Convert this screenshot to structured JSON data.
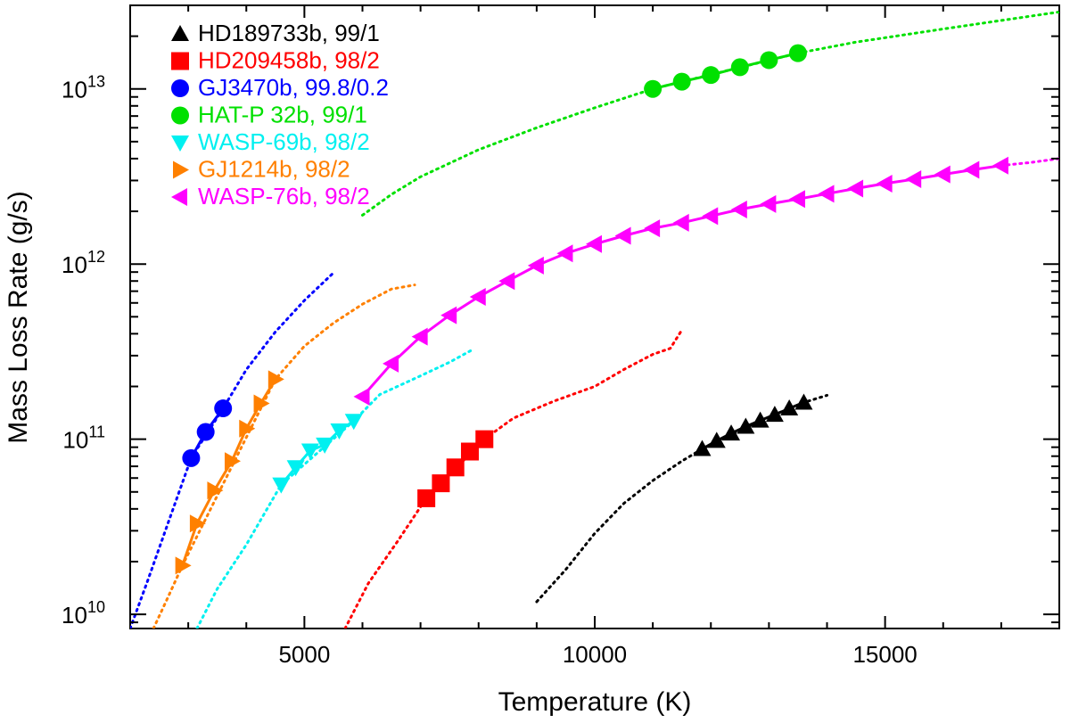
{
  "chart_data": {
    "type": "scatter",
    "title": "",
    "xlabel": "Temperature (K)",
    "ylabel": "Mass Loss Rate (g/s)",
    "x_scale": "linear",
    "y_scale": "log",
    "xlim": [
      2000,
      18000
    ],
    "ylim": [
      8300000000.0,
      30000000000000.0
    ],
    "grid": false,
    "legend_position": "top-left",
    "x_ticks": [
      {
        "value": 5000,
        "label": "5000"
      },
      {
        "value": 10000,
        "label": "10000"
      },
      {
        "value": 15000,
        "label": "15000"
      }
    ],
    "y_ticks": [
      {
        "value": 10000000000.0,
        "base": "10",
        "exp": "10"
      },
      {
        "value": 100000000000.0,
        "base": "10",
        "exp": "11"
      },
      {
        "value": 1000000000000.0,
        "base": "10",
        "exp": "12"
      },
      {
        "value": 10000000000000.0,
        "base": "10",
        "exp": "13"
      }
    ],
    "series": [
      {
        "name": "HD189733b",
        "ratio": "99/1",
        "label": "HD189733b, 99/1",
        "color": "#000000",
        "marker": "triangle-up",
        "points": [
          [
            11850,
            88000000000.0
          ],
          [
            12100,
            98000000000.0
          ],
          [
            12350,
            108000000000.0
          ],
          [
            12600,
            118000000000.0
          ],
          [
            12850,
            128000000000.0
          ],
          [
            13100,
            138000000000.0
          ],
          [
            13350,
            150000000000.0
          ],
          [
            13600,
            162000000000.0
          ]
        ],
        "dotted": [
          [
            9000,
            11800000000.0
          ],
          [
            9500,
            18000000000.0
          ],
          [
            10000,
            29000000000.0
          ],
          [
            10500,
            43000000000.0
          ],
          [
            11000,
            58000000000.0
          ],
          [
            11500,
            75000000000.0
          ],
          [
            11850,
            88000000000.0
          ],
          [
            12500,
            112000000000.0
          ],
          [
            13000,
            134000000000.0
          ],
          [
            13600,
            162000000000.0
          ],
          [
            14000,
            178000000000.0
          ]
        ]
      },
      {
        "name": "HD209458b",
        "ratio": "98/2",
        "label": "HD209458b, 98/2",
        "color": "#ff0000",
        "marker": "square",
        "points": [
          [
            7100,
            46000000000.0
          ],
          [
            7350,
            56000000000.0
          ],
          [
            7600,
            69000000000.0
          ],
          [
            7850,
            85000000000.0
          ],
          [
            8100,
            100000000000.0
          ]
        ],
        "dotted": [
          [
            5700,
            8300000000.0
          ],
          [
            6100,
            15000000000.0
          ],
          [
            6600,
            26000000000.0
          ],
          [
            7100,
            46000000000.0
          ],
          [
            8100,
            100000000000.0
          ],
          [
            8600,
            132000000000.0
          ],
          [
            9300,
            165000000000.0
          ],
          [
            10000,
            200000000000.0
          ],
          [
            10500,
            250000000000.0
          ],
          [
            11000,
            305000000000.0
          ],
          [
            11300,
            330000000000.0
          ],
          [
            11500,
            420000000000.0
          ]
        ]
      },
      {
        "name": "GJ3470b",
        "ratio": "99.8/0.2",
        "label": "GJ3470b, 99.8/0.2",
        "color": "#0000ff",
        "marker": "circle",
        "points": [
          [
            3050,
            78000000000.0
          ],
          [
            3300,
            110000000000.0
          ],
          [
            3600,
            150000000000.0
          ]
        ],
        "dotted": [
          [
            2000,
            8300000000.0
          ],
          [
            2300,
            15500000000.0
          ],
          [
            2650,
            33000000000.0
          ],
          [
            3050,
            78000000000.0
          ],
          [
            3600,
            150000000000.0
          ],
          [
            4000,
            250000000000.0
          ],
          [
            4500,
            410000000000.0
          ],
          [
            5000,
            620000000000.0
          ],
          [
            5500,
            890000000000.0
          ]
        ]
      },
      {
        "name": "HAT-P 32b",
        "ratio": "99/1",
        "label": "HAT-P 32b, 99/1",
        "color": "#00e000",
        "marker": "circle",
        "points": [
          [
            11000,
            10000000000000.0
          ],
          [
            11500,
            11000000000000.0
          ],
          [
            12000,
            12000000000000.0
          ],
          [
            12500,
            13300000000000.0
          ],
          [
            13000,
            14600000000000.0
          ],
          [
            13500,
            16000000000000.0
          ]
        ],
        "dotted": [
          [
            6000,
            1900000000000.0
          ],
          [
            6500,
            2500000000000.0
          ],
          [
            7000,
            3150000000000.0
          ],
          [
            8000,
            4500000000000.0
          ],
          [
            9000,
            6000000000000.0
          ],
          [
            10000,
            7800000000000.0
          ],
          [
            11000,
            10000000000000.0
          ],
          [
            13500,
            16000000000000.0
          ],
          [
            14500,
            18500000000000.0
          ],
          [
            16000,
            22000000000000.0
          ],
          [
            18000,
            27500000000000.0
          ]
        ]
      },
      {
        "name": "WASP-69b",
        "ratio": "98/2",
        "label": "WASP-69b, 98/2",
        "color": "#00f0f0",
        "marker": "triangle-down",
        "points": [
          [
            4600,
            55000000000.0
          ],
          [
            4850,
            69000000000.0
          ],
          [
            5100,
            86000000000.0
          ],
          [
            5350,
            93000000000.0
          ],
          [
            5600,
            112000000000.0
          ],
          [
            5850,
            127000000000.0
          ]
        ],
        "dotted": [
          [
            3150,
            8300000000.0
          ],
          [
            3500,
            14000000000.0
          ],
          [
            4000,
            25000000000.0
          ],
          [
            4600,
            55000000000.0
          ],
          [
            5850,
            127000000000.0
          ],
          [
            6300,
            180000000000.0
          ],
          [
            7000,
            230000000000.0
          ],
          [
            7500,
            275000000000.0
          ],
          [
            7900,
            325000000000.0
          ]
        ]
      },
      {
        "name": "GJ1214b",
        "ratio": "98/2",
        "label": "GJ1214b, 98/2",
        "color": "#ff8000",
        "marker": "triangle-right",
        "points": [
          [
            2900,
            19000000000.0
          ],
          [
            3150,
            33000000000.0
          ],
          [
            3450,
            51000000000.0
          ],
          [
            3750,
            75000000000.0
          ],
          [
            4000,
            115000000000.0
          ],
          [
            4250,
            160000000000.0
          ],
          [
            4500,
            220000000000.0
          ]
        ],
        "dotted": [
          [
            2400,
            8300000000.0
          ],
          [
            2650,
            12500000000.0
          ],
          [
            2900,
            19000000000.0
          ],
          [
            4500,
            220000000000.0
          ],
          [
            5000,
            340000000000.0
          ],
          [
            5500,
            460000000000.0
          ],
          [
            6000,
            590000000000.0
          ],
          [
            6500,
            720000000000.0
          ],
          [
            6900,
            760000000000.0
          ]
        ]
      },
      {
        "name": "WASP-76b",
        "ratio": "98/2",
        "label": "WASP-76b, 98/2",
        "color": "#ff00ff",
        "marker": "triangle-left",
        "points": [
          [
            6000,
            175000000000.0
          ],
          [
            6500,
            270000000000.0
          ],
          [
            7000,
            385000000000.0
          ],
          [
            7500,
            510000000000.0
          ],
          [
            8000,
            650000000000.0
          ],
          [
            8500,
            800000000000.0
          ],
          [
            9000,
            980000000000.0
          ],
          [
            9500,
            1150000000000.0
          ],
          [
            10000,
            1300000000000.0
          ],
          [
            10500,
            1450000000000.0
          ],
          [
            11000,
            1600000000000.0
          ],
          [
            11500,
            1720000000000.0
          ],
          [
            12000,
            1880000000000.0
          ],
          [
            12500,
            2050000000000.0
          ],
          [
            13000,
            2200000000000.0
          ],
          [
            13500,
            2350000000000.0
          ],
          [
            14000,
            2520000000000.0
          ],
          [
            14500,
            2700000000000.0
          ],
          [
            15000,
            2880000000000.0
          ],
          [
            15500,
            3050000000000.0
          ],
          [
            16000,
            3250000000000.0
          ],
          [
            16500,
            3450000000000.0
          ],
          [
            17000,
            3650000000000.0
          ]
        ],
        "dotted": [
          [
            17000,
            3650000000000.0
          ],
          [
            17500,
            3800000000000.0
          ],
          [
            18000,
            4000000000000.0
          ]
        ]
      }
    ]
  }
}
